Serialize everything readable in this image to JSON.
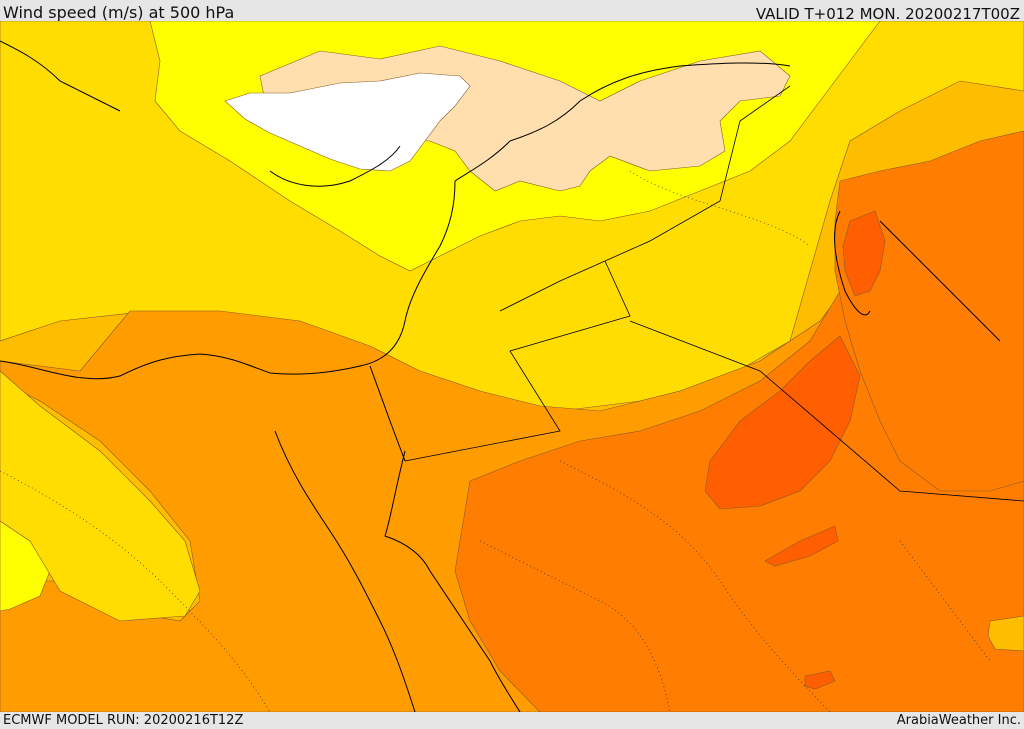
{
  "header": {
    "title": "Wind speed (m/s) at 500 hPa",
    "valid": "VALID T+012 MON. 20200217T00Z"
  },
  "footer": {
    "model_run": "ECMWF MODEL RUN: 20200216T12Z",
    "credit": "ArabiaWeather Inc."
  },
  "colors": {
    "pale": "#ffdfad",
    "yellow": "#ffff00",
    "light_orange": "#ffdd00",
    "amber": "#ffbd00",
    "orange": "#ff9c00",
    "dark_orange": "#ff7d00",
    "red_orange": "#ff5f00",
    "white": "#ffffff"
  }
}
